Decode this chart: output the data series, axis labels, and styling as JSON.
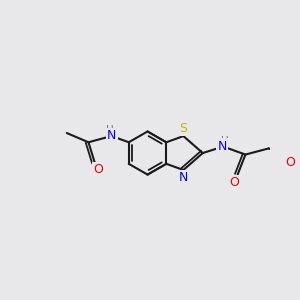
{
  "bg_color": "#e8e8ea",
  "bond_color": "#1a1a1a",
  "atom_colors": {
    "N": "#0000ee",
    "O": "#ee0000",
    "S": "#bbbb00",
    "Cl": "#33aa00",
    "C": "#1a1a1a",
    "H": "#777777"
  },
  "figsize": [
    3.0,
    3.0
  ],
  "dpi": 100
}
